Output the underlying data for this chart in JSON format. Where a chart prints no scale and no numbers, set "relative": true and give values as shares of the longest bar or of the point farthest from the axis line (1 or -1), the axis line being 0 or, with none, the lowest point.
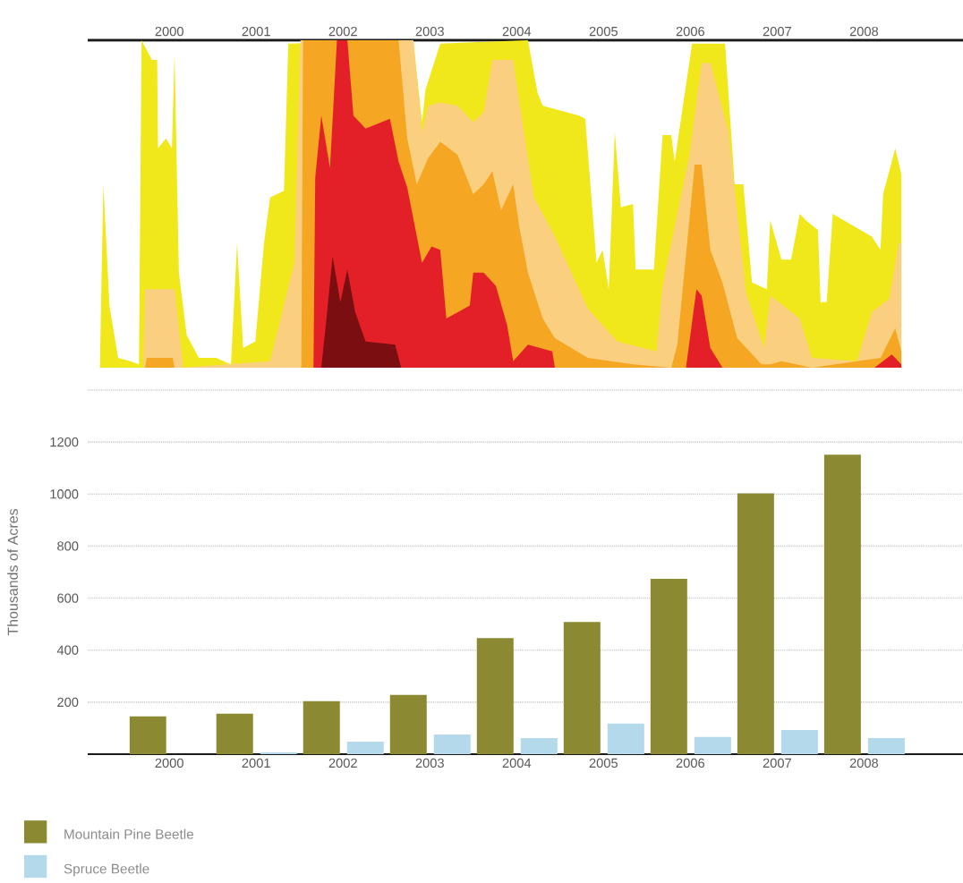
{
  "chart_data": [
    {
      "type": "area",
      "relative": true,
      "xlim": [
        1999.06,
        2009.14
      ],
      "xticks": [
        2000,
        2001,
        2002,
        2003,
        2004,
        2005,
        2006,
        2007,
        2008
      ],
      "series": [
        {
          "color": "#f0e81a",
          "x": [
            1999.2,
            1999.24,
            1999.31,
            1999.41,
            1999.55,
            1999.65,
            1999.68,
            1999.8,
            1999.86,
            1999.87,
            1999.96,
            2000.03,
            2000.06,
            2000.11,
            2000.2,
            2000.34,
            2000.54,
            2000.71,
            2000.78,
            2000.85,
            2000.99,
            2001.09,
            2001.16,
            2001.32,
            2001.37,
            2002.81,
            2002.91,
            2002.95,
            2003.12,
            2004.13,
            2004.24,
            2004.3,
            2004.72,
            2004.79,
            2004.92,
            2004.99,
            2005.06,
            2005.13,
            2005.2,
            2005.34,
            2005.37,
            2005.58,
            2005.68,
            2005.78,
            2005.82,
            2006.02,
            2006.4,
            2006.51,
            2006.61,
            2006.71,
            2006.88,
            2006.92,
            2007.05,
            2007.16,
            2007.26,
            2007.33,
            2007.47,
            2007.5,
            2007.57,
            2007.64,
            2008.09,
            2008.19,
            2008.22,
            2008.36,
            2008.43
          ],
          "values": [
            0,
            0.56,
            0.19,
            0.03,
            0.02,
            0.01,
            1.0,
            0.94,
            0.94,
            0.67,
            0.7,
            0.67,
            0.96,
            0.29,
            0.1,
            0.03,
            0.03,
            0.01,
            0.38,
            0.06,
            0.08,
            0.38,
            0.52,
            0.54,
            0.99,
            1.0,
            0.75,
            0.85,
            0.99,
            1.0,
            0.84,
            0.8,
            0.77,
            0.76,
            0.32,
            0.36,
            0.24,
            0.72,
            0.49,
            0.5,
            0.3,
            0.3,
            0.71,
            0.71,
            0.63,
            0.99,
            0.99,
            0.56,
            0.56,
            0.26,
            0.24,
            0.45,
            0.33,
            0.33,
            0.47,
            0.45,
            0.42,
            0.2,
            0.2,
            0.47,
            0.4,
            0.36,
            0.53,
            0.67,
            0.59
          ]
        },
        {
          "color": "#fad080",
          "x": [
            1999.7,
            1999.72,
            2000.06,
            2000.16,
            2001.16,
            2001.44,
            2001.51,
            2002.81,
            2002.91,
            2002.98,
            2003.12,
            2003.32,
            2003.5,
            2003.62,
            2003.72,
            2003.96,
            2004.06,
            2004.2,
            2004.44,
            2004.82,
            2005.16,
            2005.61,
            2005.68,
            2005.99,
            2006.13,
            2006.23,
            2006.44,
            2006.64,
            2006.85,
            2006.92,
            2007.26,
            2007.4,
            2007.92,
            2008.09,
            2008.29,
            2008.4,
            2008.43
          ],
          "values": [
            0,
            0.24,
            0.24,
            0,
            0.02,
            0.32,
            1.0,
            1.0,
            0.72,
            0.8,
            0.81,
            0.8,
            0.75,
            0.78,
            0.94,
            0.94,
            0.76,
            0.52,
            0.4,
            0.18,
            0.08,
            0.05,
            0.25,
            0.65,
            0.93,
            0.93,
            0.72,
            0.23,
            0.06,
            0.22,
            0.15,
            0.03,
            0.02,
            0.17,
            0.21,
            0.38,
            0.38
          ]
        },
        {
          "color": "#f5a623",
          "x": [
            1999.72,
            1999.74,
            2000.04,
            2000.06,
            2001.52,
            2001.54,
            2002.64,
            2002.74,
            2002.85,
            2002.98,
            2003.12,
            2003.32,
            2003.5,
            2003.62,
            2003.72,
            2003.82,
            2003.96,
            2004.03,
            2004.13,
            2004.3,
            2004.44,
            2004.82,
            2005.34,
            2005.78,
            2005.85,
            2006.05,
            2006.13,
            2006.23,
            2006.37,
            2006.54,
            2006.82,
            2006.92,
            2007.05,
            2007.4,
            2008.19,
            2008.36,
            2008.43
          ],
          "values": [
            0,
            0.03,
            0.03,
            0,
            0,
            1.0,
            1.0,
            0.7,
            0.56,
            0.64,
            0.69,
            0.65,
            0.53,
            0.56,
            0.6,
            0.48,
            0.56,
            0.43,
            0.29,
            0.15,
            0.09,
            0.03,
            0.01,
            0,
            0.07,
            0.62,
            0.62,
            0.36,
            0.26,
            0.09,
            0.01,
            0.01,
            0.02,
            0,
            0.03,
            0.12,
            0.05
          ]
        },
        {
          "color": "#e32028",
          "x": [
            2001.66,
            2001.68,
            2001.75,
            2001.85,
            2001.93,
            2002.05,
            2002.12,
            2002.26,
            2002.54,
            2002.64,
            2002.74,
            2002.91,
            2003.02,
            2003.12,
            2003.19,
            2003.46,
            2003.5,
            2003.62,
            2003.76,
            2003.89,
            2003.96,
            2004.13,
            2004.41,
            2004.44,
            2005.95,
            2006.07,
            2006.13,
            2006.23,
            2006.37,
            2008.12,
            2008.32,
            2008.43
          ],
          "values": [
            0,
            0.58,
            0.77,
            0.61,
            1.0,
            1.0,
            0.77,
            0.73,
            0.76,
            0.63,
            0.55,
            0.32,
            0.37,
            0.36,
            0.15,
            0.19,
            0.29,
            0.29,
            0.25,
            0.13,
            0.02,
            0.07,
            0.05,
            0,
            0,
            0.24,
            0.22,
            0.06,
            0,
            0,
            0.04,
            0.01
          ]
        },
        {
          "color": "#7a0e10",
          "x": [
            2001.75,
            2001.81,
            2001.88,
            2001.97,
            2002.05,
            2002.14,
            2002.26,
            2002.6,
            2002.67
          ],
          "values": [
            0,
            0.15,
            0.34,
            0.2,
            0.3,
            0.17,
            0.08,
            0.07,
            0
          ]
        }
      ]
    },
    {
      "type": "bar",
      "categories": [
        "2000",
        "2001",
        "2002",
        "2003",
        "2004",
        "2005",
        "2006",
        "2007",
        "2008"
      ],
      "ylabel": "Thousands of Acres",
      "ylim": [
        0,
        1400
      ],
      "yticks": [
        {
          "value": 0,
          "label": null
        },
        200,
        400,
        600,
        800,
        1000,
        1200,
        {
          "value": 1400,
          "label": null
        }
      ],
      "grid": "y",
      "legend": "bottom left",
      "series": [
        {
          "name": "Mountain Pine Beetle",
          "color": "#8b8a33",
          "values": [
            145,
            156,
            204,
            228,
            446,
            508,
            674,
            1003,
            1151
          ]
        },
        {
          "name": "Spruce Beetle",
          "color": "#b3d9eb",
          "values": [
            null,
            7,
            48,
            76,
            62,
            118,
            66,
            93,
            62
          ]
        }
      ]
    }
  ]
}
